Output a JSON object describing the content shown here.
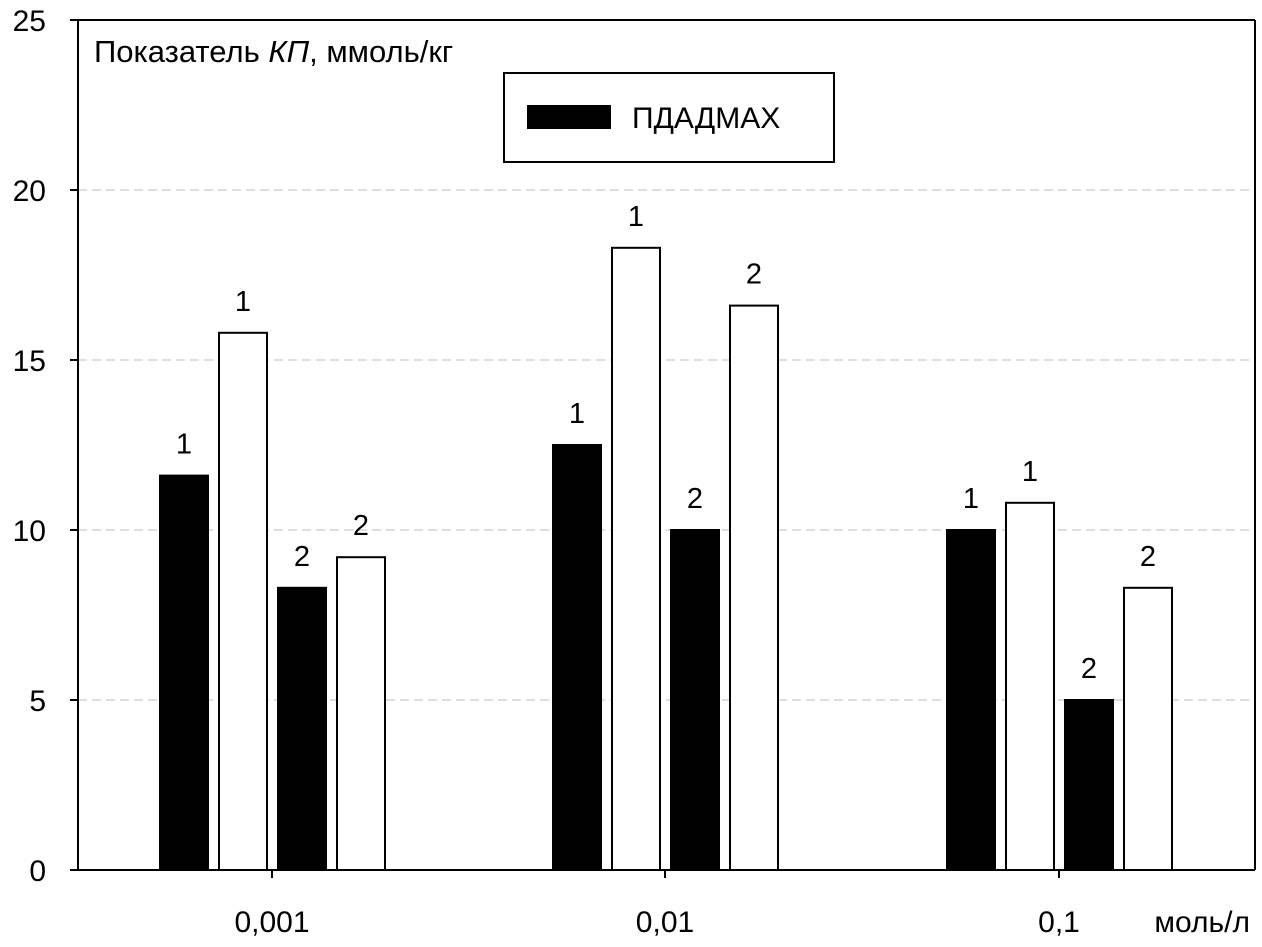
{
  "chart_data": {
    "type": "bar",
    "ylabel_prefix": "Показатель ",
    "ylabel_italic": "КП",
    "ylabel_suffix": ", ммоль/кг",
    "xunit": "моль/л",
    "categories": [
      "0,001",
      "0,01",
      "0,1"
    ],
    "ylim": [
      0,
      25
    ],
    "yticks": [
      0,
      5,
      10,
      15,
      20,
      25
    ],
    "grid": "horizontal dashed",
    "legend": {
      "label": "ПДАДМАХ",
      "placement": "top-center"
    },
    "bars": [
      {
        "category": "0,001",
        "label": "1",
        "value": 11.6,
        "fill": "#000000"
      },
      {
        "category": "0,001",
        "label": "1",
        "value": 15.8,
        "fill": "#ffffff"
      },
      {
        "category": "0,001",
        "label": "2",
        "value": 8.3,
        "fill": "#000000"
      },
      {
        "category": "0,001",
        "label": "2",
        "value": 9.2,
        "fill": "#ffffff"
      },
      {
        "category": "0,01",
        "label": "1",
        "value": 12.5,
        "fill": "#000000"
      },
      {
        "category": "0,01",
        "label": "1",
        "value": 18.3,
        "fill": "#ffffff"
      },
      {
        "category": "0,01",
        "label": "2",
        "value": 10.0,
        "fill": "#000000"
      },
      {
        "category": "0,01",
        "label": "2",
        "value": 16.6,
        "fill": "#ffffff"
      },
      {
        "category": "0,1",
        "label": "1",
        "value": 10.0,
        "fill": "#000000"
      },
      {
        "category": "0,1",
        "label": "1",
        "value": 10.8,
        "fill": "#ffffff"
      },
      {
        "category": "0,1",
        "label": "2",
        "value": 5.0,
        "fill": "#000000"
      },
      {
        "category": "0,1",
        "label": "2",
        "value": 8.3,
        "fill": "#ffffff"
      }
    ]
  }
}
